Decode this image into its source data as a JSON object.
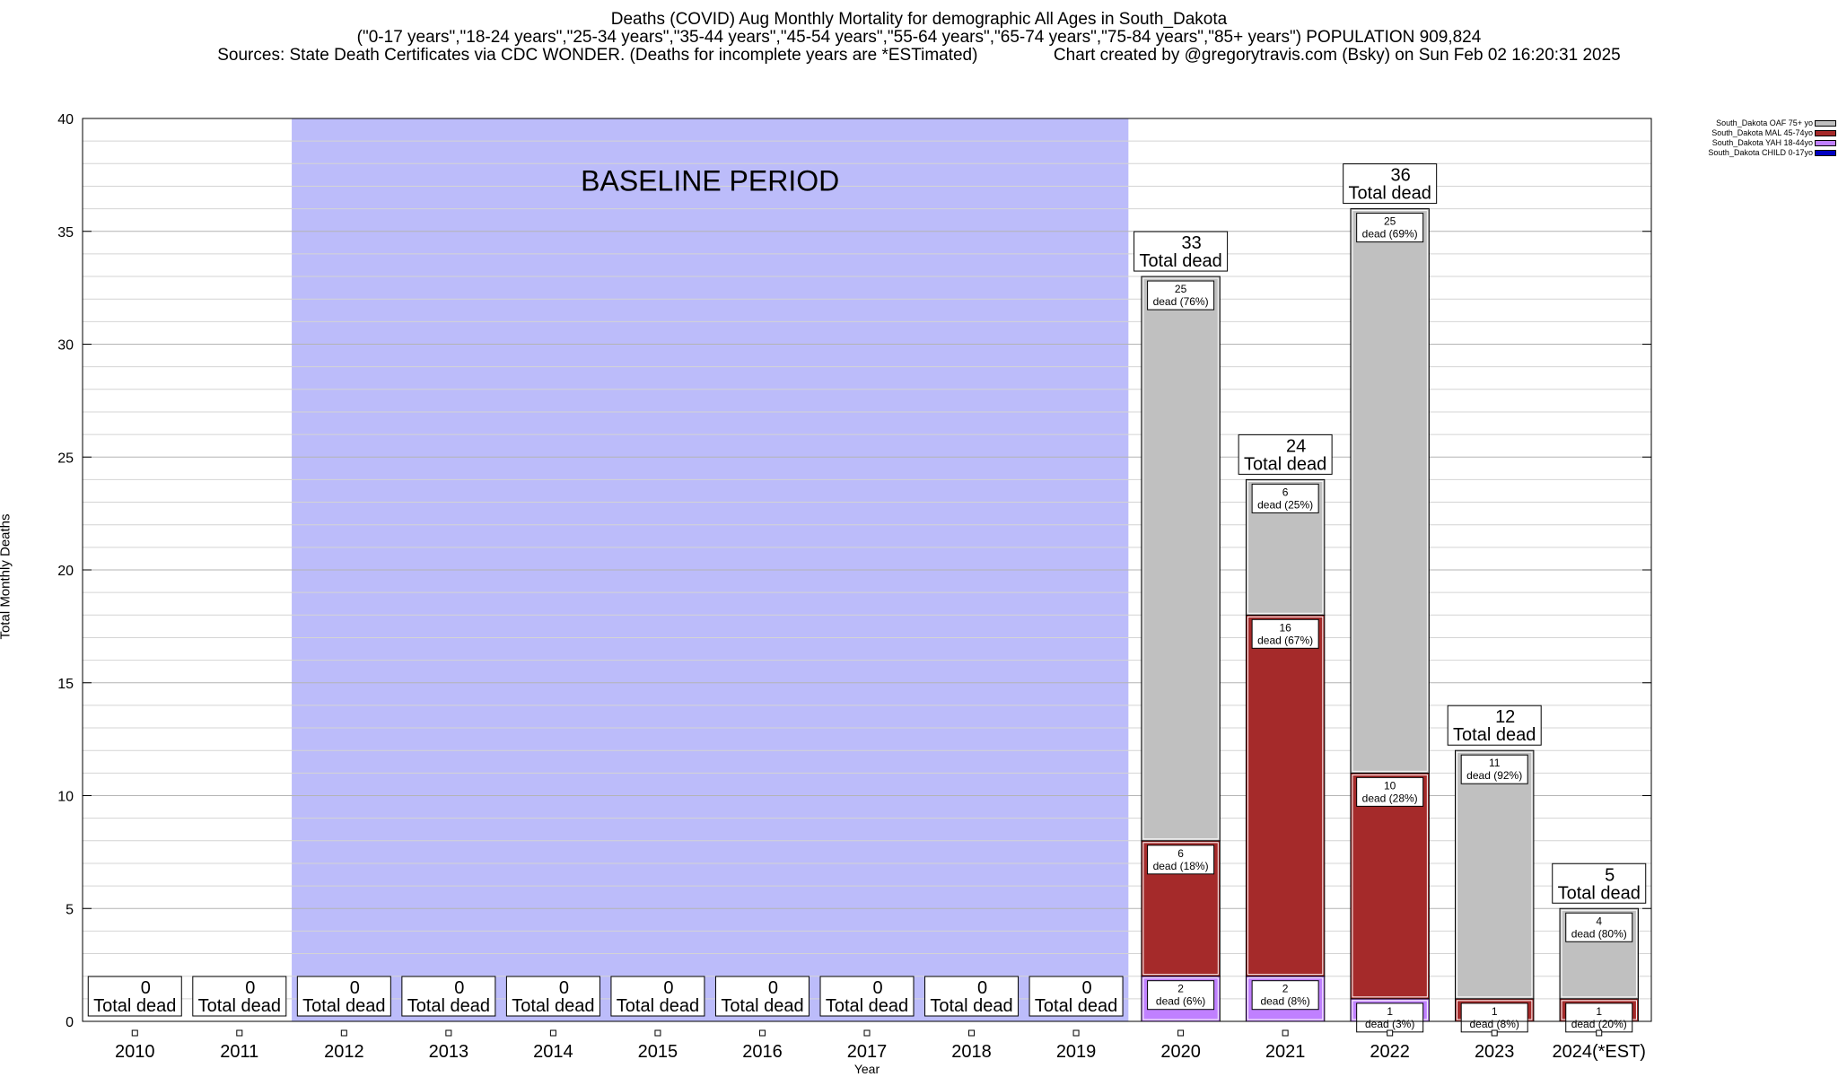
{
  "title_lines": [
    "Deaths (COVID) Aug Monthly Mortality for demographic All Ages in South_Dakota",
    "(\"0-17 years\",\"18-24 years\",\"25-34 years\",\"35-44 years\",\"45-54 years\",\"55-64 years\",\"65-74 years\",\"75-84 years\",\"85+ years\") POPULATION 909,824",
    "Sources: State Death Certificates via CDC WONDER. (Deaths for incomplete years are *ESTimated)                Chart created by @gregorytravis.com (Bsky) on Sun Feb 02 16:20:31 2025"
  ],
  "legend": [
    {
      "label": "South_Dakota OAF 75+ yo",
      "color": "#c0c0c0"
    },
    {
      "label": "South_Dakota MAL 45-74yo",
      "color": "#a52a2a"
    },
    {
      "label": "South_Dakota YAH 18-44yo",
      "color": "#c080ff"
    },
    {
      "label": "South_Dakota CHILD 0-17yo",
      "color": "#0000c0"
    }
  ],
  "chart_data": {
    "type": "bar",
    "stacked": true,
    "categories": [
      "2010",
      "2011",
      "2012",
      "2013",
      "2014",
      "2015",
      "2016",
      "2017",
      "2018",
      "2019",
      "2020",
      "2021",
      "2022",
      "2023",
      "2024(*EST)"
    ],
    "series": [
      {
        "name": "South_Dakota CHILD 0-17yo",
        "color": "#0000c0",
        "values": [
          0,
          0,
          0,
          0,
          0,
          0,
          0,
          0,
          0,
          0,
          0,
          0,
          0,
          0,
          0
        ]
      },
      {
        "name": "South_Dakota YAH 18-44yo",
        "color": "#c080ff",
        "values": [
          0,
          0,
          0,
          0,
          0,
          0,
          0,
          0,
          0,
          0,
          2,
          2,
          1,
          0,
          0
        ]
      },
      {
        "name": "South_Dakota MAL 45-74yo",
        "color": "#a52a2a",
        "values": [
          0,
          0,
          0,
          0,
          0,
          0,
          0,
          0,
          0,
          0,
          6,
          16,
          10,
          1,
          1
        ]
      },
      {
        "name": "South_Dakota OAF 75+ yo",
        "color": "#c0c0c0",
        "values": [
          0,
          0,
          0,
          0,
          0,
          0,
          0,
          0,
          0,
          0,
          25,
          6,
          25,
          11,
          4
        ]
      }
    ],
    "totals": [
      0,
      0,
      0,
      0,
      0,
      0,
      0,
      0,
      0,
      0,
      33,
      24,
      36,
      12,
      5
    ],
    "total_label_suffix": "Total dead",
    "segment_labels": [
      {
        "category": "2020",
        "series": "South_Dakota YAH 18-44yo",
        "count": "2",
        "text": "dead (6%)"
      },
      {
        "category": "2020",
        "series": "South_Dakota MAL 45-74yo",
        "count": "6",
        "text": "dead (18%)"
      },
      {
        "category": "2020",
        "series": "South_Dakota OAF 75+ yo",
        "count": "25",
        "text": "dead (76%)"
      },
      {
        "category": "2021",
        "series": "South_Dakota YAH 18-44yo",
        "count": "2",
        "text": "dead (8%)"
      },
      {
        "category": "2021",
        "series": "South_Dakota MAL 45-74yo",
        "count": "16",
        "text": "dead (67%)"
      },
      {
        "category": "2021",
        "series": "South_Dakota OAF 75+ yo",
        "count": "6",
        "text": "dead (25%)"
      },
      {
        "category": "2022",
        "series": "South_Dakota YAH 18-44yo",
        "count": "1",
        "text": "dead (3%)"
      },
      {
        "category": "2022",
        "series": "South_Dakota MAL 45-74yo",
        "count": "10",
        "text": "dead (28%)"
      },
      {
        "category": "2022",
        "series": "South_Dakota OAF 75+ yo",
        "count": "25",
        "text": "dead (69%)"
      },
      {
        "category": "2023",
        "series": "South_Dakota MAL 45-74yo",
        "count": "1",
        "text": "dead (8%)"
      },
      {
        "category": "2023",
        "series": "South_Dakota OAF 75+ yo",
        "count": "11",
        "text": "dead (92%)"
      },
      {
        "category": "2024(*EST)",
        "series": "South_Dakota MAL 45-74yo",
        "count": "1",
        "text": "dead (20%)"
      },
      {
        "category": "2024(*EST)",
        "series": "South_Dakota OAF 75+ yo",
        "count": "4",
        "text": "dead (80%)"
      }
    ],
    "baseline": {
      "label": "BASELINE PERIOD",
      "from": "2012",
      "to": "2019",
      "color": "#bcbcfa"
    },
    "xlabel": "Year",
    "ylabel": "Total Monthly Deaths",
    "ylim": [
      0,
      40
    ],
    "yticks": [
      0,
      5,
      10,
      15,
      20,
      25,
      30,
      35,
      40
    ],
    "grid": true,
    "minor_grid_step": 1,
    "legend_position": "top-right"
  }
}
